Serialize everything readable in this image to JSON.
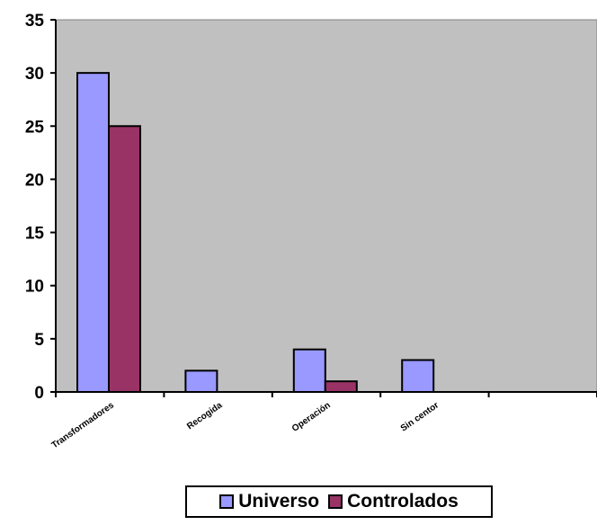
{
  "chart_data": {
    "type": "bar",
    "categories": [
      "Transformadores",
      "Recogida",
      "Operación",
      "Sin centor",
      ""
    ],
    "series": [
      {
        "name": "Universo",
        "color": "#9999ff",
        "values": [
          30,
          2,
          4,
          3,
          0
        ]
      },
      {
        "name": "Controlados",
        "color": "#993366",
        "values": [
          25,
          0,
          1,
          0,
          0
        ]
      }
    ],
    "yticks": [
      "0",
      "5",
      "10",
      "15",
      "20",
      "25",
      "30",
      "35"
    ],
    "ylim": [
      0,
      35
    ],
    "plot_background": "#c0c0c0",
    "grid": false,
    "legend_position": "bottom"
  }
}
